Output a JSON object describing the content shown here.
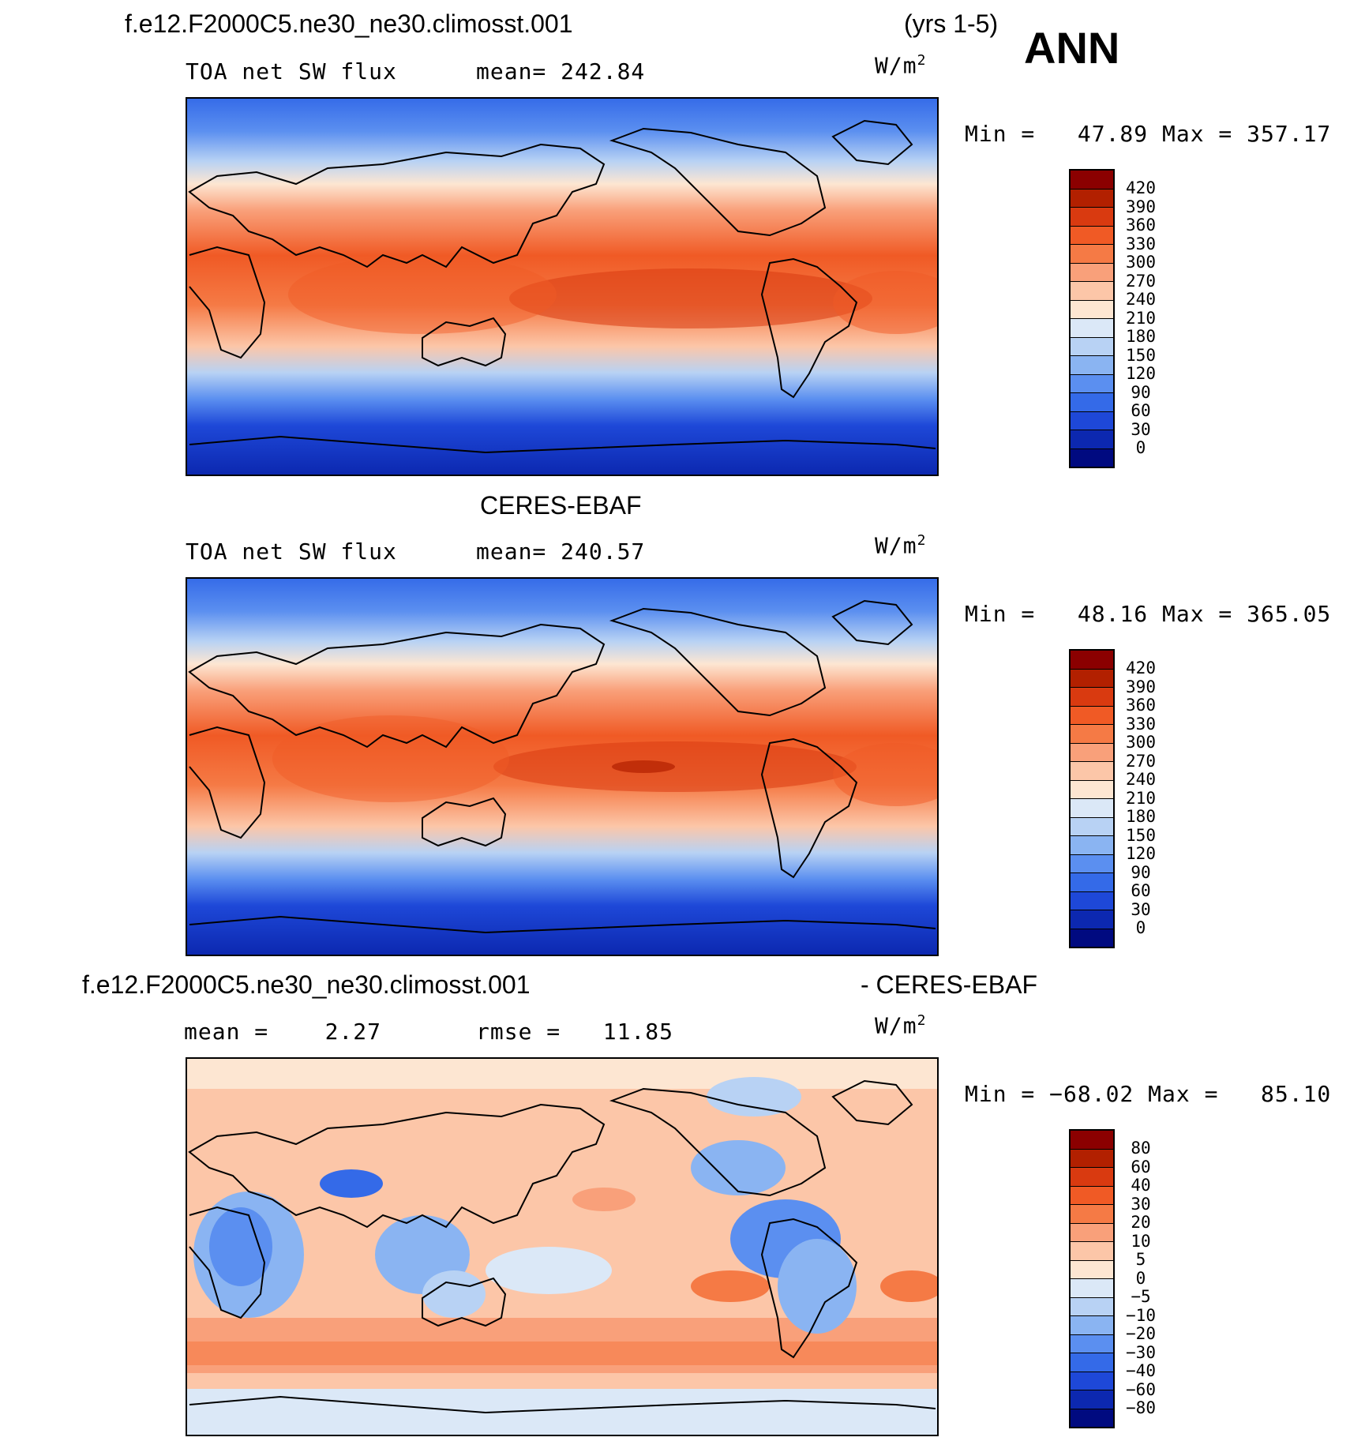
{
  "header": {
    "case_name": "f.e12.F2000C5.ne30_ne30.climosst.001",
    "years": "(yrs 1-5)",
    "season": "ANN"
  },
  "panels": [
    {
      "id": "model",
      "variable": "TOA net SW flux",
      "stat1": "mean= 242.84",
      "units_base": "W/m",
      "units_exp": "2",
      "minmax": "Min =   47.89 Max = 357.17",
      "colorbar": {
        "labels": [
          "420",
          "390",
          "360",
          "330",
          "300",
          "270",
          "240",
          "210",
          "180",
          "150",
          "120",
          "90",
          "60",
          "30",
          "0"
        ],
        "colors": [
          "#8b0000",
          "#b22000",
          "#d93a10",
          "#f05a25",
          "#f57a45",
          "#f9a07a",
          "#fcc6a8",
          "#fde6d2",
          "#dbe8f7",
          "#b8d2f4",
          "#8ab4f2",
          "#5b8ff0",
          "#346ae8",
          "#1e48d8",
          "#0c28b0",
          "#000a80"
        ]
      }
    },
    {
      "id": "obs",
      "title": "CERES-EBAF",
      "variable": "TOA net SW flux",
      "stat1": "mean= 240.57",
      "units_base": "W/m",
      "units_exp": "2",
      "minmax": "Min =   48.16 Max = 365.05",
      "colorbar": {
        "labels": [
          "420",
          "390",
          "360",
          "330",
          "300",
          "270",
          "240",
          "210",
          "180",
          "150",
          "120",
          "90",
          "60",
          "30",
          "0"
        ],
        "colors": [
          "#8b0000",
          "#b22000",
          "#d93a10",
          "#f05a25",
          "#f57a45",
          "#f9a07a",
          "#fcc6a8",
          "#fde6d2",
          "#dbe8f7",
          "#b8d2f4",
          "#8ab4f2",
          "#5b8ff0",
          "#346ae8",
          "#1e48d8",
          "#0c28b0",
          "#000a80"
        ]
      }
    },
    {
      "id": "diff",
      "title_left": "f.e12.F2000C5.ne30_ne30.climosst.001",
      "title_right": "- CERES-EBAF",
      "stat1": "mean =    2.27",
      "stat2": "rmse =   11.85",
      "units_base": "W/m",
      "units_exp": "2",
      "minmax": "Min = −68.02 Max =   85.10",
      "colorbar": {
        "labels": [
          "80",
          "60",
          "40",
          "30",
          "20",
          "10",
          "5",
          "0",
          "−5",
          "−10",
          "−20",
          "−30",
          "−40",
          "−60",
          "−80"
        ],
        "colors": [
          "#8b0000",
          "#b22000",
          "#d93a10",
          "#f05a25",
          "#f57a45",
          "#f9a07a",
          "#fcc6a8",
          "#fde6d2",
          "#dbe8f7",
          "#b8d2f4",
          "#8ab4f2",
          "#5b8ff0",
          "#346ae8",
          "#1e48d8",
          "#0c28b0",
          "#000a80"
        ]
      }
    }
  ]
}
